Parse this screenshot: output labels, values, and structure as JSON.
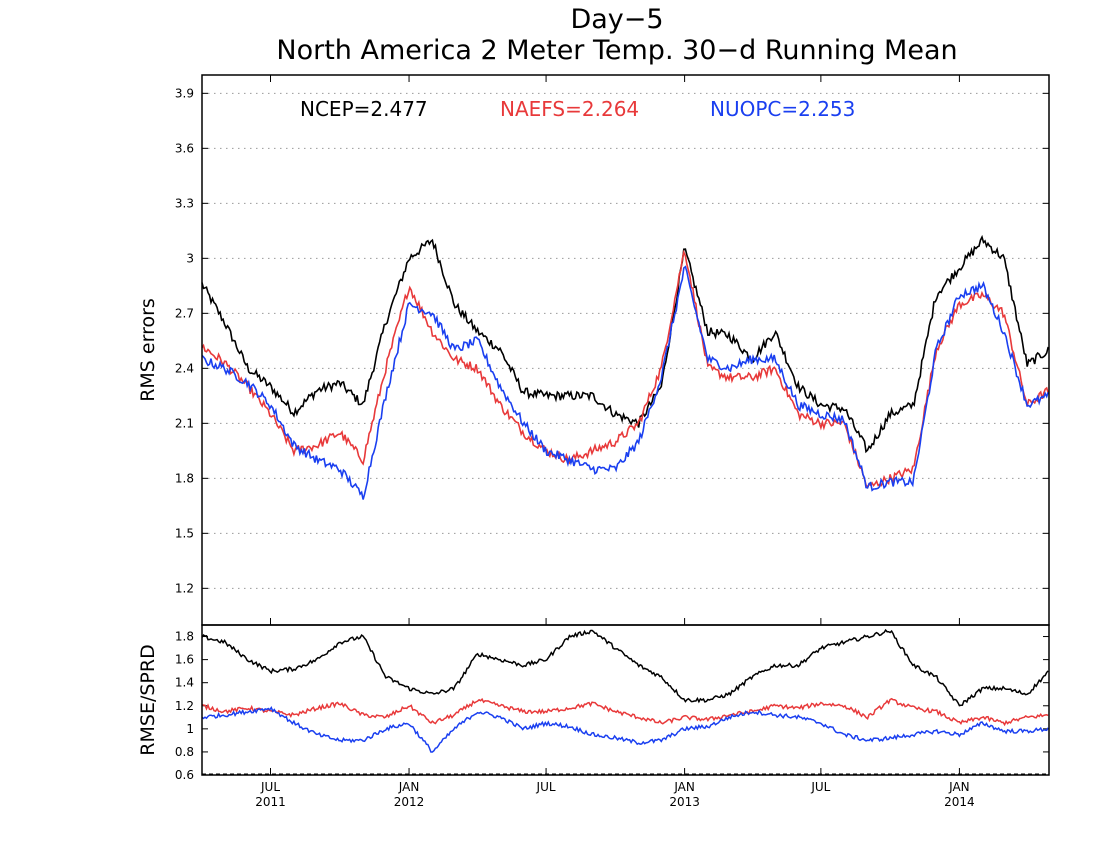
{
  "title": "Day−5",
  "subtitle": "North America 2 Meter Temp. 30−d Running Mean",
  "legend": [
    {
      "label": "NCEP=2.477",
      "color": "#000000"
    },
    {
      "label": "NAEFS=2.264",
      "color": "#e8393a"
    },
    {
      "label": "NUOPC=2.253",
      "color": "#1a3ff0"
    }
  ],
  "chart_data": [
    {
      "type": "line",
      "panel": "top",
      "title": "North America 2 Meter Temp. 30−d Running Mean",
      "ylabel": "RMS errors",
      "ylim": [
        1.0,
        4.0
      ],
      "yticks": [
        1.2,
        1.5,
        1.8,
        2.1,
        2.4,
        2.7,
        3,
        3.3,
        3.6,
        3.9
      ],
      "ytick_labels": [
        "1.2",
        "1.5",
        "1.8",
        "2.1",
        "2.4",
        "2.7",
        "3",
        "3.3",
        "3.6",
        "3.9"
      ],
      "xlim": [
        "2011-04-01",
        "2014-04-30"
      ],
      "grid": true,
      "legend_position": "top",
      "series": [
        {
          "name": "NCEP",
          "color": "#000000",
          "x": [
            "2011-04-01",
            "2011-05-01",
            "2011-06-01",
            "2011-07-01",
            "2011-08-01",
            "2011-09-01",
            "2011-10-01",
            "2011-11-01",
            "2011-12-01",
            "2012-01-01",
            "2012-02-01",
            "2012-03-01",
            "2012-04-01",
            "2012-05-01",
            "2012-06-01",
            "2012-07-01",
            "2012-08-01",
            "2012-09-01",
            "2012-10-01",
            "2012-11-01",
            "2012-12-01",
            "2013-01-01",
            "2013-02-01",
            "2013-03-01",
            "2013-04-01",
            "2013-05-01",
            "2013-06-01",
            "2013-07-01",
            "2013-08-01",
            "2013-09-01",
            "2013-10-01",
            "2013-11-01",
            "2013-12-01",
            "2014-01-01",
            "2014-02-01",
            "2014-03-01",
            "2014-04-01",
            "2014-04-30"
          ],
          "y": [
            2.86,
            2.65,
            2.4,
            2.3,
            2.16,
            2.28,
            2.32,
            2.2,
            2.65,
            3.0,
            3.1,
            2.75,
            2.6,
            2.5,
            2.27,
            2.25,
            2.25,
            2.25,
            2.15,
            2.1,
            2.3,
            3.05,
            2.6,
            2.58,
            2.45,
            2.6,
            2.3,
            2.2,
            2.18,
            1.95,
            2.15,
            2.2,
            2.8,
            2.95,
            3.1,
            3.0,
            2.42,
            2.5
          ]
        },
        {
          "name": "NAEFS",
          "color": "#e8393a",
          "x": [
            "2011-04-01",
            "2011-05-01",
            "2011-06-01",
            "2011-07-01",
            "2011-08-01",
            "2011-09-01",
            "2011-10-01",
            "2011-11-01",
            "2011-12-01",
            "2012-01-01",
            "2012-02-01",
            "2012-03-01",
            "2012-04-01",
            "2012-05-01",
            "2012-06-01",
            "2012-07-01",
            "2012-08-01",
            "2012-09-01",
            "2012-10-01",
            "2012-11-01",
            "2012-12-01",
            "2013-01-01",
            "2013-02-01",
            "2013-03-01",
            "2013-04-01",
            "2013-05-01",
            "2013-06-01",
            "2013-07-01",
            "2013-08-01",
            "2013-09-01",
            "2013-10-01",
            "2013-11-01",
            "2013-12-01",
            "2014-01-01",
            "2014-02-01",
            "2014-03-01",
            "2014-04-01",
            "2014-04-30"
          ],
          "y": [
            2.52,
            2.43,
            2.3,
            2.15,
            1.95,
            1.98,
            2.05,
            1.9,
            2.4,
            2.85,
            2.6,
            2.45,
            2.4,
            2.2,
            2.05,
            1.95,
            1.9,
            1.95,
            2.0,
            2.1,
            2.4,
            3.05,
            2.4,
            2.35,
            2.35,
            2.4,
            2.15,
            2.1,
            2.1,
            1.75,
            1.8,
            1.85,
            2.5,
            2.75,
            2.8,
            2.7,
            2.2,
            2.28
          ]
        },
        {
          "name": "NUOPC",
          "color": "#1a3ff0",
          "x": [
            "2011-04-01",
            "2011-05-01",
            "2011-06-01",
            "2011-07-01",
            "2011-08-01",
            "2011-09-01",
            "2011-10-01",
            "2011-11-01",
            "2011-12-01",
            "2012-01-01",
            "2012-02-01",
            "2012-03-01",
            "2012-04-01",
            "2012-05-01",
            "2012-06-01",
            "2012-07-01",
            "2012-08-01",
            "2012-09-01",
            "2012-10-01",
            "2012-11-01",
            "2012-12-01",
            "2013-01-01",
            "2013-02-01",
            "2013-03-01",
            "2013-04-01",
            "2013-05-01",
            "2013-06-01",
            "2013-07-01",
            "2013-08-01",
            "2013-09-01",
            "2013-10-01",
            "2013-11-01",
            "2013-12-01",
            "2014-01-01",
            "2014-02-01",
            "2014-03-01",
            "2014-04-01",
            "2014-04-30"
          ],
          "y": [
            2.45,
            2.4,
            2.32,
            2.2,
            1.98,
            1.9,
            1.85,
            1.7,
            2.25,
            2.75,
            2.7,
            2.5,
            2.55,
            2.3,
            2.1,
            1.95,
            1.9,
            1.85,
            1.85,
            2.0,
            2.35,
            2.95,
            2.45,
            2.4,
            2.45,
            2.45,
            2.2,
            2.15,
            2.12,
            1.75,
            1.78,
            1.78,
            2.5,
            2.8,
            2.85,
            2.6,
            2.2,
            2.25
          ]
        }
      ]
    },
    {
      "type": "line",
      "panel": "bottom",
      "ylabel": "RMSE/SPRD",
      "ylim": [
        0.6,
        1.9
      ],
      "yticks": [
        0.6,
        0.8,
        1,
        1.2,
        1.4,
        1.6,
        1.8
      ],
      "ytick_labels": [
        "0.6",
        "0.8",
        "1",
        "1.2",
        "1.4",
        "1.6",
        "1.8"
      ],
      "xlim": [
        "2011-04-01",
        "2014-04-30"
      ],
      "xticks": [
        {
          "date": "2011-07-01",
          "label": "JUL",
          "sublabel": "2011"
        },
        {
          "date": "2012-01-01",
          "label": "JAN",
          "sublabel": "2012"
        },
        {
          "date": "2012-07-01",
          "label": "JUL",
          "sublabel": ""
        },
        {
          "date": "2013-01-01",
          "label": "JAN",
          "sublabel": "2013"
        },
        {
          "date": "2013-07-01",
          "label": "JUL",
          "sublabel": ""
        },
        {
          "date": "2014-01-01",
          "label": "JAN",
          "sublabel": "2014"
        }
      ],
      "grid": false,
      "series": [
        {
          "name": "NCEP",
          "color": "#000000",
          "x": [
            "2011-04-01",
            "2011-05-01",
            "2011-06-01",
            "2011-07-01",
            "2011-08-01",
            "2011-09-01",
            "2011-10-01",
            "2011-11-01",
            "2011-12-01",
            "2012-01-01",
            "2012-02-01",
            "2012-03-01",
            "2012-04-01",
            "2012-05-01",
            "2012-06-01",
            "2012-07-01",
            "2012-08-01",
            "2012-09-01",
            "2012-10-01",
            "2012-11-01",
            "2012-12-01",
            "2013-01-01",
            "2013-02-01",
            "2013-03-01",
            "2013-04-01",
            "2013-05-01",
            "2013-06-01",
            "2013-07-01",
            "2013-08-01",
            "2013-09-01",
            "2013-10-01",
            "2013-11-01",
            "2013-12-01",
            "2014-01-01",
            "2014-02-01",
            "2014-03-01",
            "2014-04-01",
            "2014-04-30"
          ],
          "y": [
            1.8,
            1.75,
            1.6,
            1.5,
            1.52,
            1.6,
            1.75,
            1.8,
            1.45,
            1.35,
            1.3,
            1.35,
            1.65,
            1.6,
            1.55,
            1.6,
            1.8,
            1.85,
            1.7,
            1.55,
            1.45,
            1.25,
            1.25,
            1.3,
            1.45,
            1.55,
            1.55,
            1.7,
            1.75,
            1.8,
            1.85,
            1.55,
            1.45,
            1.2,
            1.35,
            1.35,
            1.3,
            1.5
          ]
        },
        {
          "name": "NAEFS",
          "color": "#e8393a",
          "x": [
            "2011-04-01",
            "2011-05-01",
            "2011-06-01",
            "2011-07-01",
            "2011-08-01",
            "2011-09-01",
            "2011-10-01",
            "2011-11-01",
            "2011-12-01",
            "2012-01-01",
            "2012-02-01",
            "2012-03-01",
            "2012-04-01",
            "2012-05-01",
            "2012-06-01",
            "2012-07-01",
            "2012-08-01",
            "2012-09-01",
            "2012-10-01",
            "2012-11-01",
            "2012-12-01",
            "2013-01-01",
            "2013-02-01",
            "2013-03-01",
            "2013-04-01",
            "2013-05-01",
            "2013-06-01",
            "2013-07-01",
            "2013-08-01",
            "2013-09-01",
            "2013-10-01",
            "2013-11-01",
            "2013-12-01",
            "2014-01-01",
            "2014-02-01",
            "2014-03-01",
            "2014-04-01",
            "2014-04-30"
          ],
          "y": [
            1.2,
            1.15,
            1.18,
            1.15,
            1.12,
            1.18,
            1.22,
            1.12,
            1.1,
            1.2,
            1.05,
            1.12,
            1.25,
            1.2,
            1.15,
            1.15,
            1.18,
            1.22,
            1.15,
            1.1,
            1.05,
            1.1,
            1.08,
            1.12,
            1.15,
            1.2,
            1.18,
            1.22,
            1.2,
            1.1,
            1.25,
            1.18,
            1.15,
            1.05,
            1.1,
            1.05,
            1.1,
            1.12
          ]
        },
        {
          "name": "NUOPC",
          "color": "#1a3ff0",
          "x": [
            "2011-04-01",
            "2011-05-01",
            "2011-06-01",
            "2011-07-01",
            "2011-08-01",
            "2011-09-01",
            "2011-10-01",
            "2011-11-01",
            "2011-12-01",
            "2012-01-01",
            "2012-02-01",
            "2012-03-01",
            "2012-04-01",
            "2012-05-01",
            "2012-06-01",
            "2012-07-01",
            "2012-08-01",
            "2012-09-01",
            "2012-10-01",
            "2012-11-01",
            "2012-12-01",
            "2013-01-01",
            "2013-02-01",
            "2013-03-01",
            "2013-04-01",
            "2013-05-01",
            "2013-06-01",
            "2013-07-01",
            "2013-08-01",
            "2013-09-01",
            "2013-10-01",
            "2013-11-01",
            "2013-12-01",
            "2014-01-01",
            "2014-02-01",
            "2014-03-01",
            "2014-04-01",
            "2014-04-30"
          ],
          "y": [
            1.1,
            1.12,
            1.15,
            1.18,
            1.05,
            0.95,
            0.9,
            0.9,
            1.0,
            1.05,
            0.8,
            1.0,
            1.15,
            1.1,
            1.0,
            1.05,
            1.02,
            0.95,
            0.92,
            0.88,
            0.9,
            1.0,
            1.02,
            1.1,
            1.15,
            1.12,
            1.1,
            1.05,
            0.95,
            0.9,
            0.92,
            0.95,
            0.98,
            0.95,
            1.05,
            0.98,
            0.98,
            1.0
          ]
        }
      ]
    }
  ]
}
